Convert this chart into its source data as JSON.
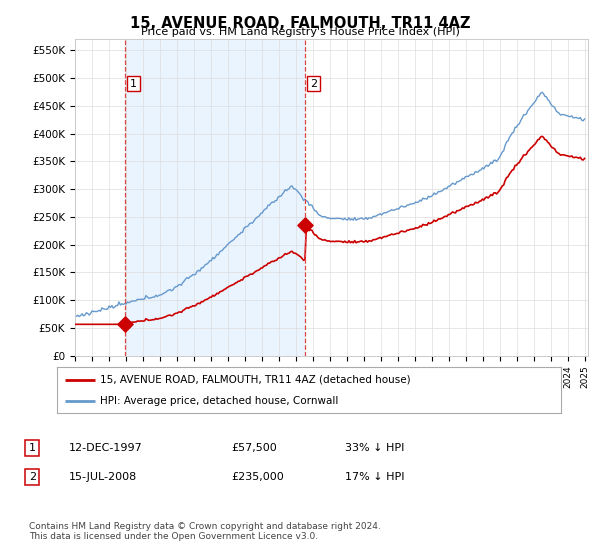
{
  "title": "15, AVENUE ROAD, FALMOUTH, TR11 4AZ",
  "subtitle": "Price paid vs. HM Land Registry's House Price Index (HPI)",
  "ylabel_ticks": [
    "£0",
    "£50K",
    "£100K",
    "£150K",
    "£200K",
    "£250K",
    "£300K",
    "£350K",
    "£400K",
    "£450K",
    "£500K",
    "£550K"
  ],
  "ytick_vals": [
    0,
    50000,
    100000,
    150000,
    200000,
    250000,
    300000,
    350000,
    400000,
    450000,
    500000,
    550000
  ],
  "ylim": [
    0,
    570000
  ],
  "xstart_year": 1995,
  "xend_year": 2025,
  "purchase1_date": 1997.95,
  "purchase1_price": 57500,
  "purchase1_label": "1",
  "purchase2_date": 2008.54,
  "purchase2_price": 235000,
  "purchase2_label": "2",
  "line_color_property": "#cc0000",
  "line_color_hpi": "#6699cc",
  "fill_color": "#ddeeff",
  "dot_color": "#cc0000",
  "vline_color": "#dd4444",
  "grid_color": "#dddddd",
  "bg_color": "#ffffff",
  "legend_property": "15, AVENUE ROAD, FALMOUTH, TR11 4AZ (detached house)",
  "legend_hpi": "HPI: Average price, detached house, Cornwall",
  "table_row1": [
    "1",
    "12-DEC-1997",
    "£57,500",
    "33% ↓ HPI"
  ],
  "table_row2": [
    "2",
    "15-JUL-2008",
    "£235,000",
    "17% ↓ HPI"
  ],
  "footnote": "Contains HM Land Registry data © Crown copyright and database right 2024.\nThis data is licensed under the Open Government Licence v3.0."
}
